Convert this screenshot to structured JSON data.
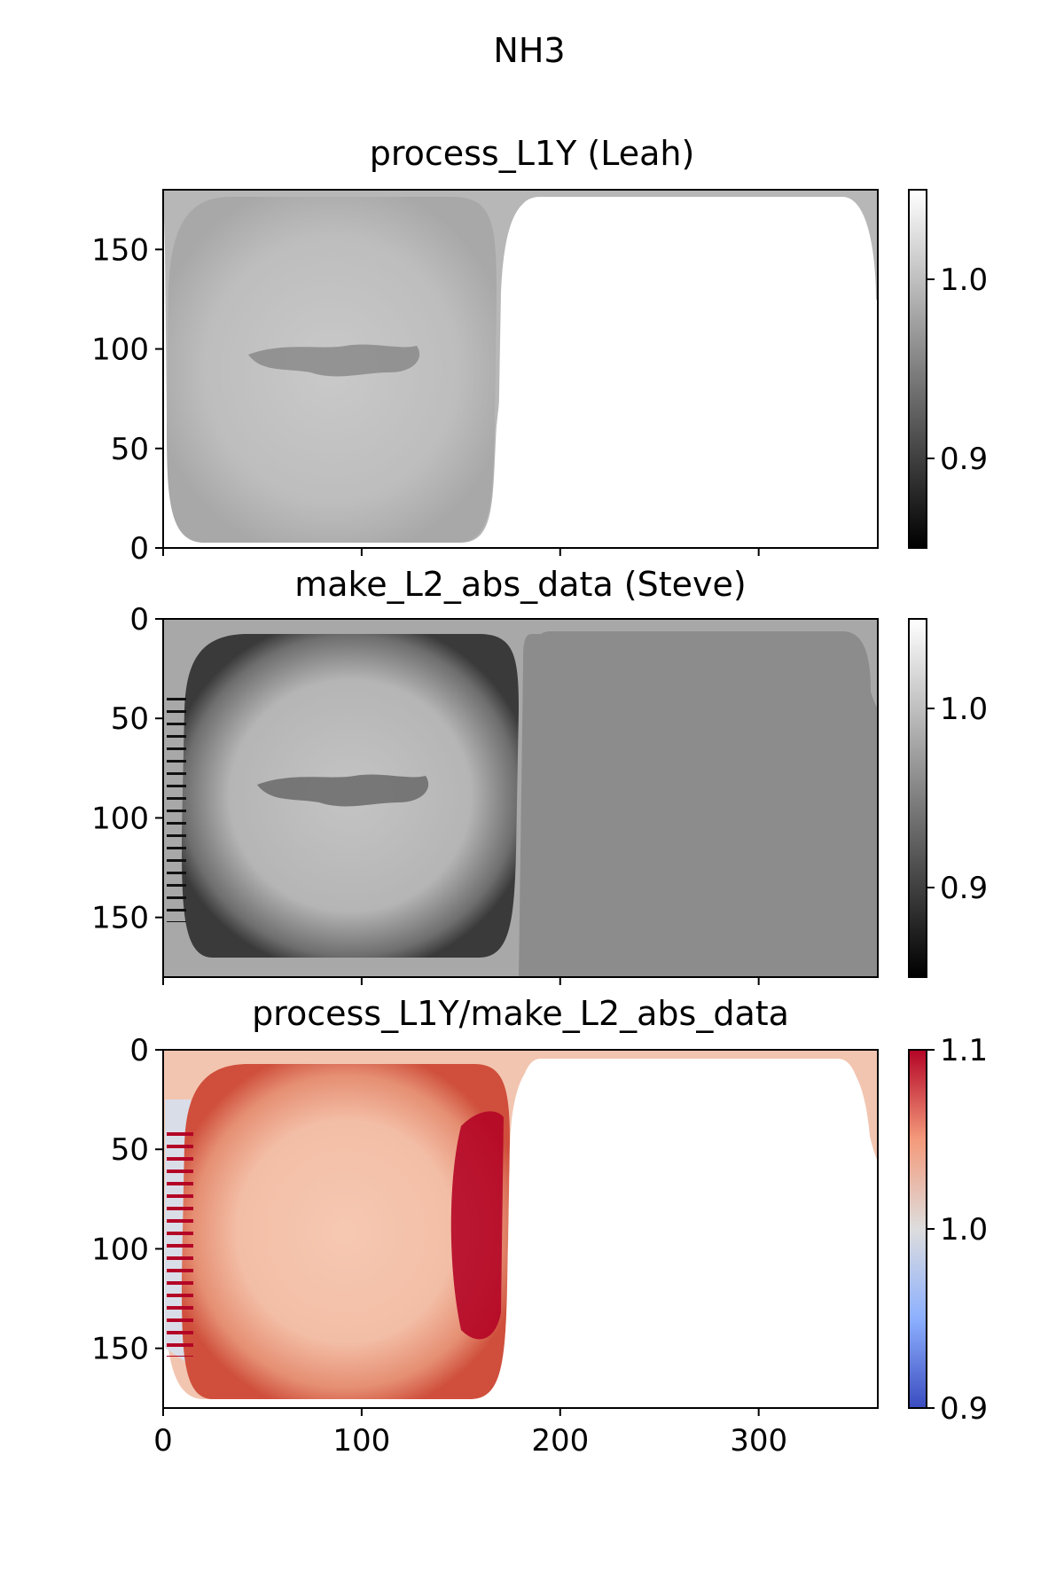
{
  "figure": {
    "suptitle": "NH3"
  },
  "chart_data": [
    {
      "type": "heatmap",
      "title": "process_L1Y (Leah)",
      "colormap": "gray",
      "xlim": [
        0,
        360
      ],
      "ylim": [
        0,
        180
      ],
      "y_inverted": false,
      "ytick_labels": [
        "0",
        "50",
        "100",
        "150"
      ],
      "xtick_labels_visible": false,
      "colorbar": {
        "range": [
          0.85,
          1.05
        ],
        "tick_labels": [
          "0.9",
          "1.0"
        ]
      }
    },
    {
      "type": "heatmap",
      "title": "make_L2_abs_data (Steve)",
      "colormap": "gray",
      "xlim": [
        0,
        360
      ],
      "ylim": [
        180,
        0
      ],
      "y_inverted": true,
      "ytick_labels": [
        "0",
        "50",
        "100",
        "150"
      ],
      "xtick_labels_visible": false,
      "colorbar": {
        "range": [
          0.85,
          1.05
        ],
        "tick_labels": [
          "0.9",
          "1.0"
        ]
      }
    },
    {
      "type": "heatmap",
      "title": "process_L1Y/make_L2_abs_data",
      "colormap": "coolwarm",
      "xlim": [
        0,
        360
      ],
      "ylim": [
        180,
        0
      ],
      "y_inverted": true,
      "ytick_labels": [
        "0",
        "50",
        "100",
        "150"
      ],
      "xtick_labels": [
        "0",
        "100",
        "200",
        "300"
      ],
      "colorbar": {
        "range": [
          0.9,
          1.1
        ],
        "tick_labels": [
          "0.9",
          "1.0",
          "1.1"
        ]
      }
    }
  ]
}
